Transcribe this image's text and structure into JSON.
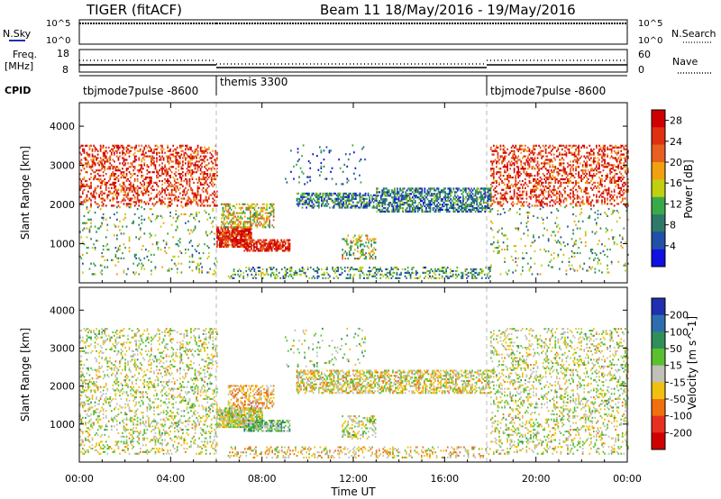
{
  "header": {
    "station": "TIGER (fitACF)",
    "beam_info": "Beam 11  18/May/2016 - 19/May/2016"
  },
  "top_panel": {
    "nsky": {
      "label": "N.Sky",
      "tick_hi": "10^5",
      "tick_lo": "10^0",
      "tick_hi_r": "10^5",
      "tick_lo_r": "10^0"
    },
    "nsearch_label": "N.Search",
    "freq": {
      "label_line1": "Freq.",
      "label_line2": "[MHz]",
      "tick_hi": "18",
      "tick_lo": "8"
    },
    "nave": {
      "label": "Nave",
      "tick_hi": "60",
      "tick_lo": "0"
    },
    "cpid": {
      "label": "CPID",
      "segments": [
        {
          "name": "tbjmode7pulse -8600",
          "start_hour": 0
        },
        {
          "name": "themis 3300",
          "start_hour": 6
        },
        {
          "name": "tbjmode7pulse -8600",
          "start_hour": 18
        }
      ]
    }
  },
  "colors": {
    "power": [
      "#1010e0",
      "#2050a8",
      "#2e7a68",
      "#3aaa48",
      "#c0d010",
      "#f0a010",
      "#e86020",
      "#e03010",
      "#d00000"
    ],
    "velocity": [
      "#2030b0",
      "#2e6eb0",
      "#2f8f5a",
      "#5ac030",
      "#c0c0b8",
      "#f0c010",
      "#f07010",
      "#e83020",
      "#d00000"
    ]
  },
  "chart_data": [
    {
      "type": "heatmap",
      "title": "Power",
      "ylabel": "Slant Range [km]",
      "xlabel": "",
      "x_ticks": [
        "00:00",
        "04:00",
        "08:00",
        "12:00",
        "16:00",
        "20:00",
        "00:00"
      ],
      "y_ticks": [
        "1000",
        "2000",
        "3000",
        "4000"
      ],
      "ylim": [
        0,
        4600
      ],
      "xlim_hours": [
        0,
        24
      ],
      "colorbar": {
        "label": "Power [dB]",
        "ticks": [
          "4",
          "8",
          "12",
          "16",
          "20",
          "24",
          "28"
        ],
        "range": [
          0,
          30
        ]
      },
      "dashed_lines_hours": [
        6,
        18
      ],
      "regions": [
        {
          "t": [
            0,
            6
          ],
          "r": [
            1950,
            3500
          ],
          "value": 25,
          "density": 0.35
        },
        {
          "t": [
            0,
            6
          ],
          "r": [
            200,
            1950
          ],
          "value": 12,
          "density": 0.08
        },
        {
          "t": [
            18,
            24
          ],
          "r": [
            1950,
            3500
          ],
          "value": 25,
          "density": 0.35
        },
        {
          "t": [
            18,
            24
          ],
          "r": [
            200,
            1950
          ],
          "value": 12,
          "density": 0.08
        },
        {
          "t": [
            6,
            7.5
          ],
          "r": [
            900,
            1400
          ],
          "value": 26,
          "density": 0.85
        },
        {
          "t": [
            7.2,
            9.2
          ],
          "r": [
            800,
            1100
          ],
          "value": 27,
          "density": 0.7
        },
        {
          "t": [
            6.2,
            8.5
          ],
          "r": [
            1400,
            2000
          ],
          "value": 16,
          "density": 0.5
        },
        {
          "t": [
            9.5,
            13
          ],
          "r": [
            1900,
            2300
          ],
          "value": 8,
          "density": 0.55
        },
        {
          "t": [
            13,
            18
          ],
          "r": [
            1800,
            2400
          ],
          "value": 8,
          "density": 0.6
        },
        {
          "t": [
            11.5,
            13
          ],
          "r": [
            600,
            1200
          ],
          "value": 14,
          "density": 0.35
        },
        {
          "t": [
            6.5,
            18
          ],
          "r": [
            100,
            400
          ],
          "value": 10,
          "density": 0.3
        },
        {
          "t": [
            9,
            12.5
          ],
          "r": [
            2500,
            3500
          ],
          "value": 6,
          "density": 0.06
        }
      ]
    },
    {
      "type": "heatmap",
      "title": "Velocity",
      "ylabel": "Slant Range [km]",
      "xlabel": "Time UT",
      "x_ticks": [
        "00:00",
        "04:00",
        "08:00",
        "12:00",
        "16:00",
        "20:00",
        "00:00"
      ],
      "y_ticks": [
        "1000",
        "2000",
        "3000",
        "4000"
      ],
      "ylim": [
        0,
        4600
      ],
      "xlim_hours": [
        0,
        24
      ],
      "colorbar": {
        "label": "Velocity [m s^-1]",
        "ticks": [
          "200",
          "100",
          "50",
          "15",
          "-15",
          "-50",
          "-100",
          "-200"
        ],
        "range": [
          -250,
          250
        ]
      },
      "dashed_lines_hours": [
        6,
        18
      ],
      "regions": [
        {
          "t": [
            0,
            6
          ],
          "r": [
            200,
            3500
          ],
          "value": 0,
          "density": 0.22
        },
        {
          "t": [
            18,
            24
          ],
          "r": [
            200,
            3500
          ],
          "value": 0,
          "density": 0.22
        },
        {
          "t": [
            6,
            8
          ],
          "r": [
            900,
            1400
          ],
          "value": 0,
          "density": 0.85
        },
        {
          "t": [
            7.2,
            9.2
          ],
          "r": [
            800,
            1100
          ],
          "value": 60,
          "density": 0.6
        },
        {
          "t": [
            6.5,
            8.5
          ],
          "r": [
            1400,
            2000
          ],
          "value": -60,
          "density": 0.45
        },
        {
          "t": [
            9.5,
            18
          ],
          "r": [
            1800,
            2400
          ],
          "value": -20,
          "density": 0.5
        },
        {
          "t": [
            11.5,
            13
          ],
          "r": [
            600,
            1200
          ],
          "value": 0,
          "density": 0.35
        },
        {
          "t": [
            6.5,
            18
          ],
          "r": [
            100,
            400
          ],
          "value": -40,
          "density": 0.25
        },
        {
          "t": [
            9,
            12.5
          ],
          "r": [
            2500,
            3500
          ],
          "value": 30,
          "density": 0.06
        }
      ]
    }
  ]
}
